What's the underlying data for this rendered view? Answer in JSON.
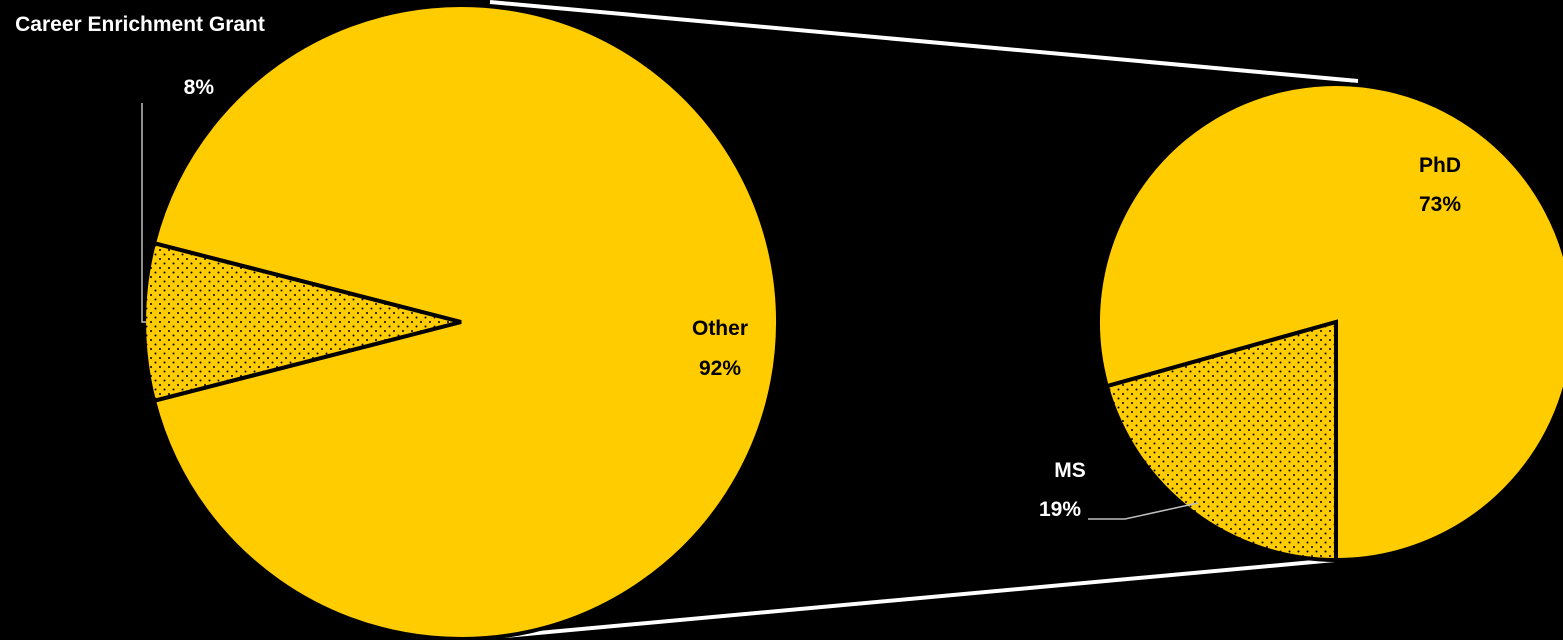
{
  "chart_data": {
    "type": "pie",
    "subtype": "bar-of-pie",
    "background": "#000000",
    "colors": {
      "fill": "#FFCC00",
      "outline": "#000000",
      "connector": "#FFFFFF",
      "label_primary": "#000000",
      "label_secondary": "#FFFFFF"
    },
    "charts": [
      {
        "slices": [
          {
            "label": "Other",
            "value": 92,
            "display": "92%",
            "pattern": "solid"
          },
          {
            "label": "Career Enrichment Grant",
            "value": 8,
            "display": "8%",
            "pattern": "dotted"
          }
        ]
      },
      {
        "slices": [
          {
            "label": "PhD",
            "value": 73,
            "display": "73%",
            "pattern": "solid"
          },
          {
            "label": "MS",
            "value": 19,
            "display": "19%",
            "pattern": "dotted"
          }
        ]
      }
    ]
  }
}
